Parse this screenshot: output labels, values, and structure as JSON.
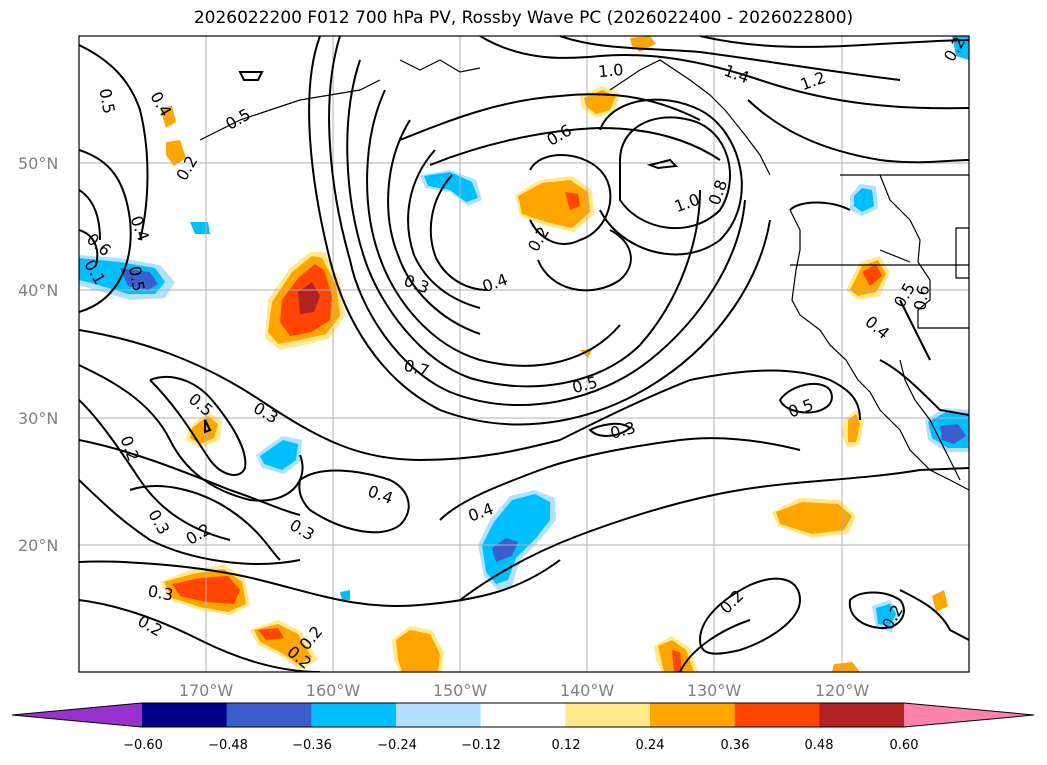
{
  "title": "2026022200 F012 700 hPa PV, Rossby Wave PC (2026022400 - 2026022800)",
  "map": {
    "lat_labels": [
      "50°N",
      "40°N",
      "30°N",
      "20°N"
    ],
    "lon_labels": [
      "170°W",
      "160°W",
      "150°W",
      "140°W",
      "130°W",
      "120°W"
    ],
    "contour_labels": [
      "0.5",
      "0.4",
      "0.2",
      "0.4",
      "0.6",
      "0.1",
      "0.5",
      "0.2",
      "0.2",
      "0.3",
      "0.7",
      "0.3",
      "0.4",
      "0.6",
      "1.0",
      "1.4",
      "1.2",
      "1.0",
      "0.8",
      "0.5",
      "0.5",
      "0.3",
      "0.5",
      "0.3",
      "0.4",
      "0.2",
      "0.3",
      "0.3",
      "0.2",
      "0.4",
      "0.2",
      "0.2",
      "0.2",
      "0.2",
      "0.2",
      "0.5",
      "0.6",
      "0.4",
      "0.5"
    ]
  },
  "colorbar": {
    "ticks": [
      "−0.60",
      "−0.48",
      "−0.36",
      "−0.24",
      "−0.12",
      "0.12",
      "0.24",
      "0.36",
      "0.48",
      "0.60"
    ],
    "colors": [
      "#9932cc",
      "#00008b",
      "#3a5fcd",
      "#00bfff",
      "#b0e2ff",
      "#ffffff",
      "#ffe98a",
      "#ffa500",
      "#ff4500",
      "#b22222",
      "#ff82ab"
    ]
  }
}
